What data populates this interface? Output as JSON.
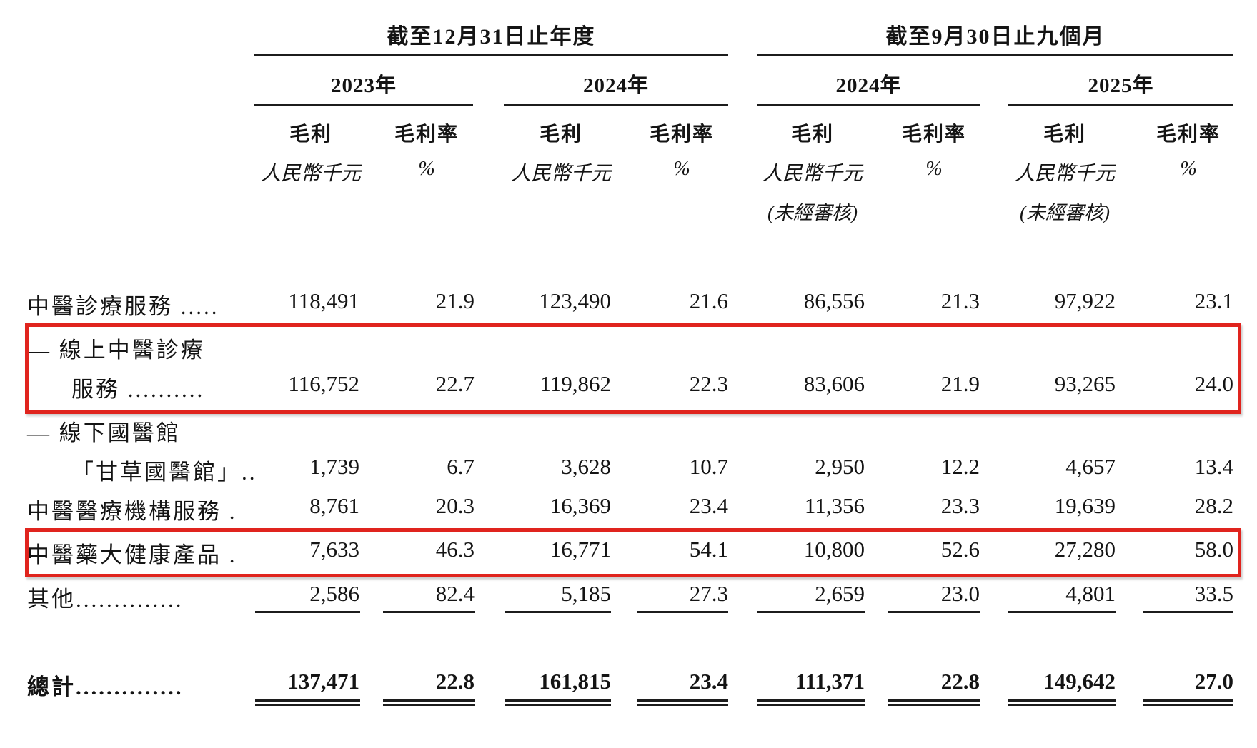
{
  "highlight_color": "#e0241e",
  "table": {
    "groups": [
      {
        "title": "截至12月31日止年度",
        "years": [
          "2023年",
          "2024年"
        ]
      },
      {
        "title": "截至9月30日止九個月",
        "years": [
          "2024年",
          "2025年"
        ]
      }
    ],
    "labels": {
      "gross_profit": "毛利",
      "gross_margin": "毛利率",
      "unit_amount": "人民幣千元",
      "unit_percent": "%",
      "unaudited": "(未經審核)"
    },
    "rows": [
      {
        "label": "中醫診療服務 .....",
        "values": [
          "118,491",
          "21.9",
          "123,490",
          "21.6",
          "86,556",
          "21.3",
          "97,922",
          "23.1"
        ],
        "highlighted": false
      },
      {
        "label": "— 線上中醫診療",
        "label2": "服務 ..........",
        "values": [
          "116,752",
          "22.7",
          "119,862",
          "22.3",
          "83,606",
          "21.9",
          "93,265",
          "24.0"
        ],
        "highlighted": true
      },
      {
        "label": "— 線下國醫館",
        "label2": "「甘草國醫館」..",
        "values": [
          "1,739",
          "6.7",
          "3,628",
          "10.7",
          "2,950",
          "12.2",
          "4,657",
          "13.4"
        ],
        "highlighted": false
      },
      {
        "label": "中醫醫療機構服務 .",
        "values": [
          "8,761",
          "20.3",
          "16,369",
          "23.4",
          "11,356",
          "23.3",
          "19,639",
          "28.2"
        ],
        "highlighted": false
      },
      {
        "label": "中醫藥大健康產品 .",
        "values": [
          "7,633",
          "46.3",
          "16,771",
          "54.1",
          "10,800",
          "52.6",
          "27,280",
          "58.0"
        ],
        "highlighted": true
      },
      {
        "label": "其他..............",
        "values": [
          "2,586",
          "82.4",
          "5,185",
          "27.3",
          "2,659",
          "23.0",
          "4,801",
          "33.5"
        ],
        "highlighted": false
      }
    ],
    "total": {
      "label": "總計..............",
      "values": [
        "137,471",
        "22.8",
        "161,815",
        "23.4",
        "111,371",
        "22.8",
        "149,642",
        "27.0"
      ]
    }
  }
}
